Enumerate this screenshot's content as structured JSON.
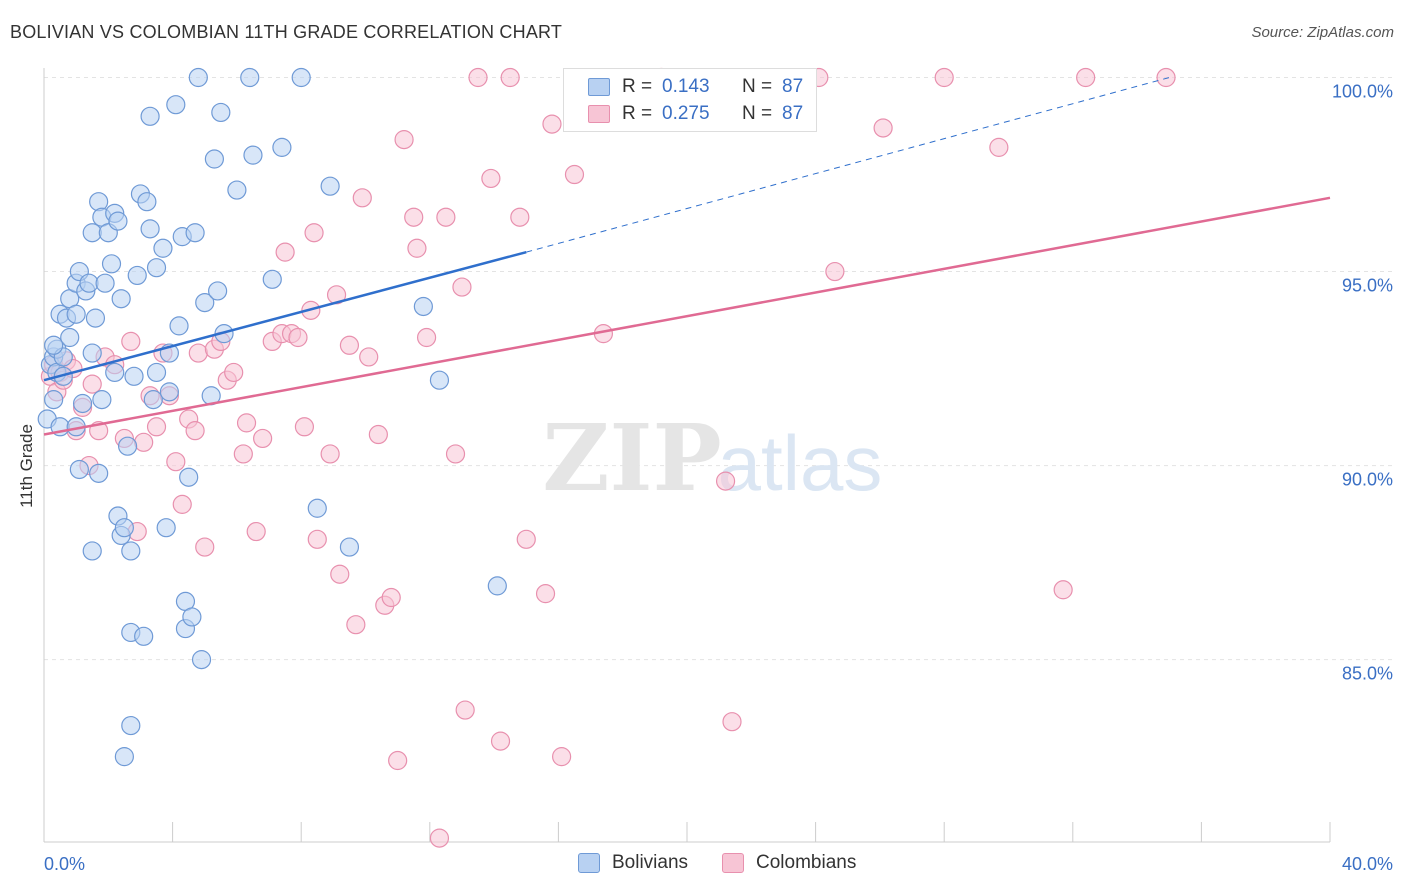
{
  "title": "BOLIVIAN VS COLOMBIAN 11TH GRADE CORRELATION CHART",
  "source": "Source: ZipAtlas.com",
  "watermark": {
    "zip": "ZIP",
    "atlas": "atlas"
  },
  "legend_top": [
    {
      "r_label": "R =",
      "r_value": "0.143",
      "n_label": "N =",
      "n_value": "87"
    },
    {
      "r_label": "R =",
      "r_value": "0.275",
      "n_label": "N =",
      "n_value": "87"
    }
  ],
  "legend_bottom": [
    {
      "label": "Bolivians"
    },
    {
      "label": "Colombians"
    }
  ],
  "colors": {
    "bolivians_fill": "#b8d1f2",
    "bolivians_stroke": "#6f9ad6",
    "bolivians_line": "#2f6fcc",
    "colombians_fill": "#f7c5d5",
    "colombians_stroke": "#e890ae",
    "colombians_line": "#e06a93",
    "axis_label": "#3a6fc4",
    "grid": "#e3e3e3"
  },
  "chart_data": {
    "type": "scatter",
    "ylabel": "11th Grade",
    "xlabel": "",
    "xlim": [
      0,
      40
    ],
    "ylim": [
      80.3,
      100.4
    ],
    "x_tick_labels": [
      "0.0%",
      "40.0%"
    ],
    "y_ticks": [
      85,
      90,
      95,
      100
    ],
    "y_tick_labels": [
      "85.0%",
      "90.0%",
      "95.0%",
      "100.0%"
    ],
    "grid": true,
    "series": [
      {
        "name": "Bolivians",
        "trend": {
          "x": [
            0,
            15
          ],
          "y": [
            92.2,
            95.5
          ],
          "extended_to": [
            35,
            100.0
          ]
        },
        "points": [
          [
            0.1,
            91.2
          ],
          [
            0.2,
            92.6
          ],
          [
            0.3,
            91.7
          ],
          [
            0.3,
            92.8
          ],
          [
            0.4,
            93.0
          ],
          [
            0.4,
            92.4
          ],
          [
            0.5,
            91.0
          ],
          [
            0.5,
            93.9
          ],
          [
            0.6,
            92.3
          ],
          [
            0.6,
            92.8
          ],
          [
            0.7,
            93.8
          ],
          [
            0.8,
            94.3
          ],
          [
            0.8,
            93.3
          ],
          [
            1.0,
            94.7
          ],
          [
            1.0,
            93.9
          ],
          [
            1.0,
            91.0
          ],
          [
            1.1,
            95.0
          ],
          [
            1.1,
            89.9
          ],
          [
            1.2,
            91.6
          ],
          [
            1.3,
            94.5
          ],
          [
            1.4,
            94.7
          ],
          [
            1.5,
            92.9
          ],
          [
            1.5,
            87.8
          ],
          [
            1.5,
            96.0
          ],
          [
            1.6,
            93.8
          ],
          [
            1.7,
            89.8
          ],
          [
            1.7,
            96.8
          ],
          [
            1.8,
            91.7
          ],
          [
            1.8,
            96.4
          ],
          [
            1.9,
            94.7
          ],
          [
            2.0,
            96.0
          ],
          [
            2.1,
            95.2
          ],
          [
            2.2,
            96.5
          ],
          [
            2.2,
            92.4
          ],
          [
            2.3,
            96.3
          ],
          [
            2.3,
            88.7
          ],
          [
            2.4,
            88.2
          ],
          [
            2.4,
            94.3
          ],
          [
            2.5,
            88.4
          ],
          [
            2.6,
            90.5
          ],
          [
            2.7,
            87.8
          ],
          [
            2.7,
            85.7
          ],
          [
            2.7,
            83.3
          ],
          [
            2.5,
            82.5
          ],
          [
            2.8,
            92.3
          ],
          [
            2.9,
            94.9
          ],
          [
            3.0,
            97.0
          ],
          [
            3.1,
            85.6
          ],
          [
            3.2,
            96.8
          ],
          [
            3.3,
            99.0
          ],
          [
            3.3,
            96.1
          ],
          [
            3.4,
            91.7
          ],
          [
            3.5,
            95.1
          ],
          [
            3.5,
            92.4
          ],
          [
            3.7,
            95.6
          ],
          [
            3.8,
            88.4
          ],
          [
            3.9,
            91.9
          ],
          [
            3.9,
            92.9
          ],
          [
            4.1,
            99.3
          ],
          [
            4.2,
            93.6
          ],
          [
            4.3,
            95.9
          ],
          [
            4.4,
            86.5
          ],
          [
            4.4,
            85.8
          ],
          [
            4.5,
            89.7
          ],
          [
            4.6,
            86.1
          ],
          [
            4.7,
            96.0
          ],
          [
            4.8,
            100.0
          ],
          [
            4.9,
            85.0
          ],
          [
            5.0,
            94.2
          ],
          [
            5.2,
            91.8
          ],
          [
            5.3,
            97.9
          ],
          [
            5.4,
            94.5
          ],
          [
            5.5,
            99.1
          ],
          [
            5.6,
            93.4
          ],
          [
            6.0,
            97.1
          ],
          [
            6.4,
            100.0
          ],
          [
            6.5,
            98.0
          ],
          [
            7.1,
            94.8
          ],
          [
            7.4,
            98.2
          ],
          [
            8.0,
            100.0
          ],
          [
            8.5,
            88.9
          ],
          [
            8.9,
            97.2
          ],
          [
            9.5,
            87.9
          ],
          [
            11.8,
            94.1
          ],
          [
            12.3,
            92.2
          ],
          [
            14.1,
            86.9
          ],
          [
            0.3,
            93.1
          ]
        ]
      },
      {
        "name": "Colombians",
        "trend": {
          "x": [
            0,
            40
          ],
          "y": [
            90.8,
            96.9
          ]
        },
        "points": [
          [
            0.2,
            92.3
          ],
          [
            0.3,
            92.6
          ],
          [
            0.4,
            91.9
          ],
          [
            0.5,
            92.4
          ],
          [
            0.6,
            92.2
          ],
          [
            0.7,
            92.7
          ],
          [
            0.9,
            92.5
          ],
          [
            1.2,
            91.5
          ],
          [
            1.4,
            90.0
          ],
          [
            1.5,
            92.1
          ],
          [
            1.7,
            90.9
          ],
          [
            1.9,
            92.8
          ],
          [
            2.2,
            92.6
          ],
          [
            2.5,
            90.7
          ],
          [
            2.7,
            93.2
          ],
          [
            2.9,
            88.3
          ],
          [
            3.1,
            90.6
          ],
          [
            3.3,
            91.8
          ],
          [
            3.5,
            91.0
          ],
          [
            3.7,
            92.9
          ],
          [
            3.9,
            91.8
          ],
          [
            4.1,
            90.1
          ],
          [
            4.3,
            89.0
          ],
          [
            4.5,
            91.2
          ],
          [
            4.7,
            90.9
          ],
          [
            4.8,
            92.9
          ],
          [
            5.0,
            87.9
          ],
          [
            5.3,
            93.0
          ],
          [
            5.5,
            93.2
          ],
          [
            5.7,
            92.2
          ],
          [
            5.9,
            92.4
          ],
          [
            6.2,
            90.3
          ],
          [
            6.3,
            91.1
          ],
          [
            6.6,
            88.3
          ],
          [
            6.8,
            90.7
          ],
          [
            7.1,
            93.2
          ],
          [
            7.4,
            93.4
          ],
          [
            7.5,
            95.5
          ],
          [
            7.7,
            93.4
          ],
          [
            7.9,
            93.3
          ],
          [
            8.1,
            91.0
          ],
          [
            8.3,
            94.0
          ],
          [
            8.4,
            96.0
          ],
          [
            8.5,
            88.1
          ],
          [
            8.9,
            90.3
          ],
          [
            9.1,
            94.4
          ],
          [
            9.2,
            87.2
          ],
          [
            9.5,
            93.1
          ],
          [
            9.7,
            85.9
          ],
          [
            9.9,
            96.9
          ],
          [
            10.1,
            92.8
          ],
          [
            10.4,
            90.8
          ],
          [
            10.6,
            86.4
          ],
          [
            10.8,
            86.6
          ],
          [
            11.2,
            98.4
          ],
          [
            11.5,
            96.4
          ],
          [
            11.6,
            95.6
          ],
          [
            11.9,
            93.3
          ],
          [
            12.3,
            80.4
          ],
          [
            12.5,
            96.4
          ],
          [
            12.8,
            90.3
          ],
          [
            13.0,
            94.6
          ],
          [
            13.1,
            83.7
          ],
          [
            13.5,
            100.0
          ],
          [
            13.9,
            97.4
          ],
          [
            14.2,
            82.9
          ],
          [
            14.5,
            100.0
          ],
          [
            14.8,
            96.4
          ],
          [
            15.0,
            88.1
          ],
          [
            15.6,
            86.7
          ],
          [
            15.8,
            98.8
          ],
          [
            16.1,
            82.5
          ],
          [
            16.5,
            97.5
          ],
          [
            17.4,
            93.4
          ],
          [
            19.2,
            100.0
          ],
          [
            21.2,
            89.6
          ],
          [
            21.4,
            83.4
          ],
          [
            24.1,
            100.0
          ],
          [
            24.6,
            95.0
          ],
          [
            26.1,
            98.7
          ],
          [
            28.0,
            100.0
          ],
          [
            29.7,
            98.2
          ],
          [
            31.7,
            86.8
          ],
          [
            32.4,
            100.0
          ],
          [
            34.9,
            100.0
          ],
          [
            1.0,
            90.9
          ],
          [
            11.0,
            82.4
          ]
        ]
      }
    ]
  }
}
